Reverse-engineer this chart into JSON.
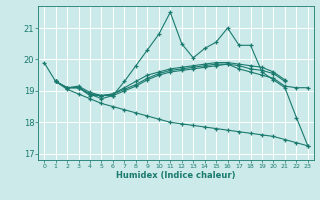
{
  "xlabel": "Humidex (Indice chaleur)",
  "bg_color": "#cceaea",
  "line_color": "#1a7a6e",
  "grid_color": "#ffffff",
  "xlim": [
    -0.5,
    23.5
  ],
  "ylim": [
    16.8,
    21.7
  ],
  "yticks": [
    17,
    18,
    19,
    20,
    21
  ],
  "xticks": [
    0,
    1,
    2,
    3,
    4,
    5,
    6,
    7,
    8,
    9,
    10,
    11,
    12,
    13,
    14,
    15,
    16,
    17,
    18,
    19,
    20,
    21,
    22,
    23
  ],
  "lines": [
    {
      "x": [
        0,
        1,
        2,
        3,
        4,
        5,
        6,
        7,
        8,
        9,
        10,
        11,
        12,
        13,
        14,
        15,
        16,
        17,
        18,
        19,
        20,
        21,
        22,
        23
      ],
      "y": [
        19.9,
        19.3,
        19.1,
        19.1,
        18.85,
        18.85,
        18.85,
        19.3,
        19.8,
        20.3,
        20.8,
        21.5,
        20.5,
        20.05,
        20.35,
        20.55,
        21.0,
        20.45,
        20.45,
        19.6,
        19.35,
        19.1,
        18.15,
        17.25
      ]
    },
    {
      "x": [
        1,
        2,
        3,
        4,
        5,
        6,
        7,
        8,
        9,
        10,
        11,
        12,
        13,
        14,
        15,
        16,
        17,
        18,
        19,
        20,
        21
      ],
      "y": [
        19.3,
        19.1,
        19.15,
        18.95,
        18.85,
        18.9,
        19.1,
        19.3,
        19.5,
        19.6,
        19.7,
        19.75,
        19.8,
        19.85,
        19.9,
        19.9,
        19.85,
        19.8,
        19.75,
        19.6,
        19.35
      ]
    },
    {
      "x": [
        1,
        2,
        3,
        4,
        5,
        6,
        7,
        8,
        9,
        10,
        11,
        12,
        13,
        14,
        15,
        16,
        17,
        18,
        19,
        20,
        21
      ],
      "y": [
        19.3,
        19.1,
        19.1,
        18.9,
        18.85,
        18.9,
        19.05,
        19.2,
        19.4,
        19.55,
        19.65,
        19.7,
        19.75,
        19.8,
        19.85,
        19.85,
        19.8,
        19.7,
        19.65,
        19.55,
        19.3
      ]
    },
    {
      "x": [
        1,
        2,
        3,
        4,
        5,
        6,
        7,
        8,
        9,
        10,
        11,
        12,
        13,
        14,
        15,
        16,
        17,
        18,
        19,
        20,
        21,
        22,
        23
      ],
      "y": [
        19.3,
        19.1,
        19.1,
        18.9,
        18.75,
        18.85,
        19.0,
        19.15,
        19.35,
        19.5,
        19.6,
        19.65,
        19.7,
        19.75,
        19.8,
        19.85,
        19.7,
        19.6,
        19.5,
        19.4,
        19.15,
        19.1,
        19.1
      ]
    },
    {
      "x": [
        1,
        2,
        3,
        4,
        5,
        6,
        7,
        8,
        9,
        10,
        11,
        12,
        13,
        14,
        15,
        16,
        17,
        18,
        19,
        20,
        21,
        22,
        23
      ],
      "y": [
        19.3,
        19.05,
        18.9,
        18.75,
        18.6,
        18.5,
        18.4,
        18.3,
        18.2,
        18.1,
        18.0,
        17.95,
        17.9,
        17.85,
        17.8,
        17.75,
        17.7,
        17.65,
        17.6,
        17.55,
        17.45,
        17.35,
        17.25
      ]
    }
  ]
}
